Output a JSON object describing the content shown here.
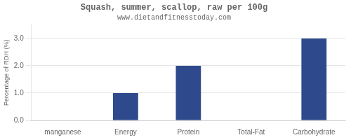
{
  "chart_data": {
    "type": "bar",
    "title": "Squash, summer, scallop, raw per 100g",
    "subtitle": "www.dietandfitnesstoday.com",
    "categories": [
      "manganese",
      "Energy",
      "Protein",
      "Total-Fat",
      "Carbohydrate"
    ],
    "values": [
      0.0,
      1.0,
      2.0,
      0.0,
      3.0
    ],
    "color": "#2e4a8c",
    "ylabel": "Percentage of RDH (%)",
    "ylim": [
      0,
      3.5
    ],
    "yticks": [
      {
        "value": 0.0,
        "label": "0.0"
      },
      {
        "value": 1.0,
        "label": "1.0"
      },
      {
        "value": 2.0,
        "label": "2.0"
      },
      {
        "value": 3.0,
        "label": "3.0"
      }
    ],
    "grid": true
  }
}
